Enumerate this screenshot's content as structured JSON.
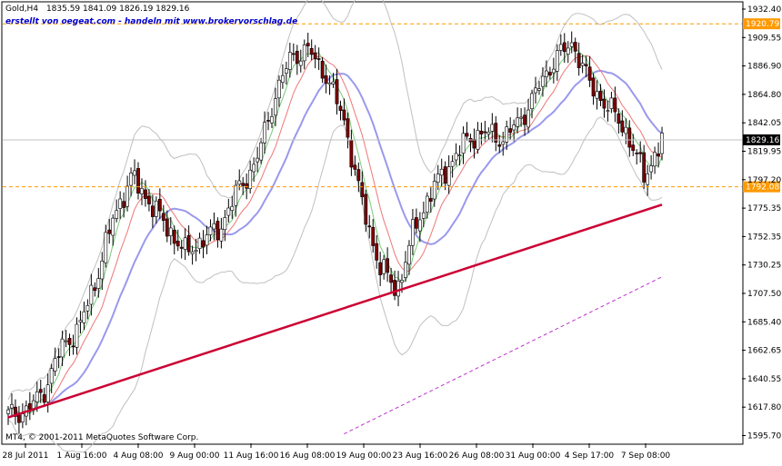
{
  "header": {
    "symbol": "Gold,H4",
    "ohlc": "1835.59 1841.09 1826.19 1829.16",
    "credit": "erstellt von oegeat.com - handeln mit www.brokervorschlag.de"
  },
  "footer": {
    "copyright": "MT4, © 2001-2011 MetaQuotes Software Corp."
  },
  "colors": {
    "frame": "#000000",
    "bull": "#ffffff",
    "bear": "#800000",
    "wick": "#000000",
    "bb": "#c0c0c0",
    "ma_slow": "#9999ee",
    "ma_mid": "#ee7777",
    "ma_fast": "#77cc77",
    "trend": "#cc0033",
    "trend_dashed": "#bb33cc",
    "hline": "#ff9900",
    "current_price_line": "#c0c0c0",
    "current_price_bg": "#000000"
  },
  "chart_data": {
    "type": "candlestick",
    "symbol": "Gold",
    "timeframe": "H4",
    "y_ticks": [
      "1932.40",
      "1909.55",
      "1886.90",
      "1864.80",
      "1842.05",
      "1819.95",
      "1797.20",
      "1775.35",
      "1752.35",
      "1730.25",
      "1707.50",
      "1685.40",
      "1662.65",
      "1640.55",
      "1617.80",
      "1595.70"
    ],
    "x_ticks": [
      "28 Jul 2011",
      "1 Aug 16:00",
      "4 Aug 08:00",
      "9 Aug 00:00",
      "11 Aug 16:00",
      "16 Aug 08:00",
      "19 Aug 00:00",
      "23 Aug 16:00",
      "26 Aug 08:00",
      "31 Aug 00:00",
      "4 Sep 17:00",
      "7 Sep 08:00"
    ],
    "ylim": [
      1595.7,
      1932.4
    ],
    "grid": false,
    "horizontal_lines": [
      {
        "price": 1920.79,
        "label": "1920.79",
        "style": "dashed"
      },
      {
        "price": 1792.08,
        "label": "1792.08",
        "style": "dashed"
      }
    ],
    "current_price": {
      "price": 1829.16,
      "label": "1829.16"
    },
    "key_closes": [
      1612,
      1615,
      1630,
      1665,
      1680,
      1720,
      1770,
      1800,
      1780,
      1760,
      1740,
      1750,
      1760,
      1790,
      1810,
      1860,
      1895,
      1900,
      1880,
      1845,
      1780,
      1730,
      1710,
      1760,
      1790,
      1810,
      1830,
      1835,
      1830,
      1845,
      1870,
      1895,
      1905,
      1870,
      1855,
      1835,
      1800,
      1829
    ],
    "trendlines": [
      {
        "name": "support",
        "from": {
          "bar": 0,
          "price": 1610
        },
        "to": {
          "bar": 37,
          "price": 1778
        },
        "style": "solid"
      },
      {
        "name": "channel-lower",
        "from": {
          "bar": 19,
          "price": 1597
        },
        "to": {
          "bar": 37,
          "price": 1721
        },
        "style": "dashed"
      }
    ]
  }
}
